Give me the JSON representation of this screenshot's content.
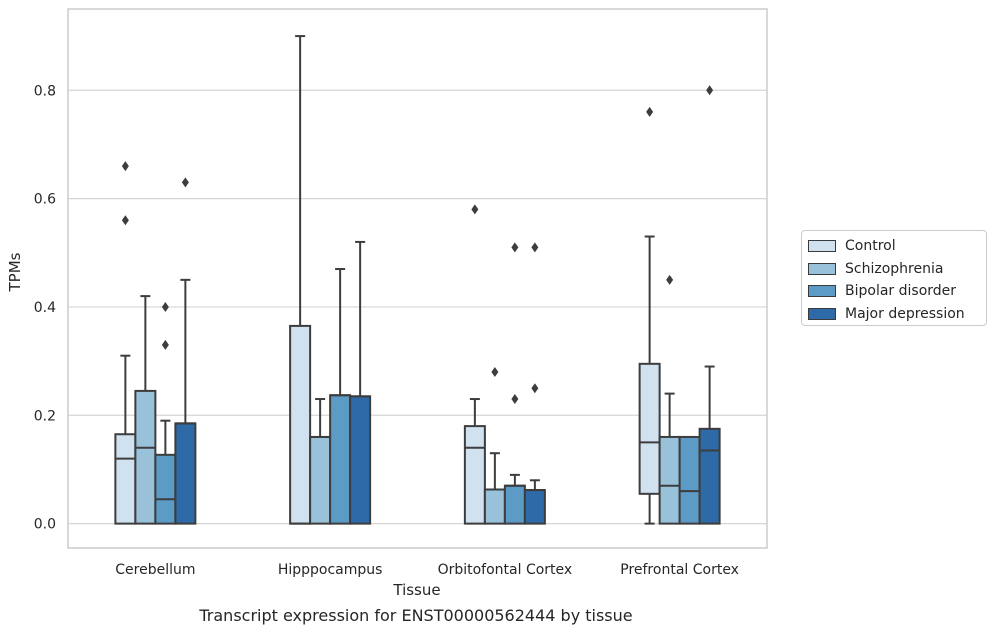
{
  "caption": "Transcript expression for ENST00000562444 by tissue",
  "chart_data": {
    "type": "box",
    "title": "",
    "xlabel": "Tissue",
    "ylabel": "TPMs",
    "ylim": [
      -0.045,
      0.95
    ],
    "yticks": [
      "0.0",
      "0.2",
      "0.4",
      "0.6",
      "0.8"
    ],
    "grid": "horizontal",
    "legend_position": "right",
    "categories": [
      "Cerebellum",
      "Hipppocampus",
      "Orbitofontal Cortex",
      "Prefrontal Cortex"
    ],
    "series": [
      {
        "name": "Control",
        "color": "#d0e1f0",
        "boxes": [
          {
            "whislo": 0.0,
            "q1": 0.0,
            "med": 0.12,
            "q3": 0.165,
            "whishi": 0.31,
            "fliers": [
              0.56,
              0.66
            ]
          },
          {
            "whislo": 0.0,
            "q1": 0.0,
            "med": 0.0,
            "q3": 0.365,
            "whishi": 0.9,
            "fliers": []
          },
          {
            "whislo": 0.0,
            "q1": 0.0,
            "med": 0.14,
            "q3": 0.18,
            "whishi": 0.23,
            "fliers": [
              0.58
            ]
          },
          {
            "whislo": 0.0,
            "q1": 0.055,
            "med": 0.15,
            "q3": 0.295,
            "whishi": 0.53,
            "fliers": [
              0.76
            ]
          }
        ]
      },
      {
        "name": "Schizophrenia",
        "color": "#9ac1da",
        "boxes": [
          {
            "whislo": 0.0,
            "q1": 0.0,
            "med": 0.14,
            "q3": 0.245,
            "whishi": 0.42,
            "fliers": []
          },
          {
            "whislo": 0.0,
            "q1": 0.0,
            "med": 0.16,
            "q3": 0.16,
            "whishi": 0.23,
            "fliers": []
          },
          {
            "whislo": 0.0,
            "q1": 0.0,
            "med": 0.063,
            "q3": 0.063,
            "whishi": 0.13,
            "fliers": [
              0.28
            ]
          },
          {
            "whislo": 0.0,
            "q1": 0.0,
            "med": 0.07,
            "q3": 0.16,
            "whishi": 0.24,
            "fliers": [
              0.45
            ]
          }
        ]
      },
      {
        "name": "Bipolar disorder",
        "color": "#5b9bc6",
        "boxes": [
          {
            "whislo": 0.0,
            "q1": 0.0,
            "med": 0.045,
            "q3": 0.127,
            "whishi": 0.19,
            "fliers": [
              0.33,
              0.4
            ]
          },
          {
            "whislo": 0.0,
            "q1": 0.0,
            "med": 0.237,
            "q3": 0.237,
            "whishi": 0.47,
            "fliers": []
          },
          {
            "whislo": 0.0,
            "q1": 0.0,
            "med": 0.07,
            "q3": 0.07,
            "whishi": 0.09,
            "fliers": [
              0.23,
              0.51
            ]
          },
          {
            "whislo": 0.0,
            "q1": 0.0,
            "med": 0.06,
            "q3": 0.16,
            "whishi": 0.16,
            "fliers": []
          }
        ]
      },
      {
        "name": "Major depression",
        "color": "#2e6aa8",
        "boxes": [
          {
            "whislo": 0.0,
            "q1": 0.0,
            "med": 0.185,
            "q3": 0.185,
            "whishi": 0.45,
            "fliers": [
              0.63
            ]
          },
          {
            "whislo": 0.0,
            "q1": 0.0,
            "med": 0.235,
            "q3": 0.235,
            "whishi": 0.52,
            "fliers": []
          },
          {
            "whislo": 0.0,
            "q1": 0.0,
            "med": 0.062,
            "q3": 0.062,
            "whishi": 0.08,
            "fliers": [
              0.25,
              0.51
            ]
          },
          {
            "whislo": 0.0,
            "q1": 0.0,
            "med": 0.135,
            "q3": 0.175,
            "whishi": 0.29,
            "fliers": [
              0.8
            ]
          }
        ]
      }
    ]
  }
}
